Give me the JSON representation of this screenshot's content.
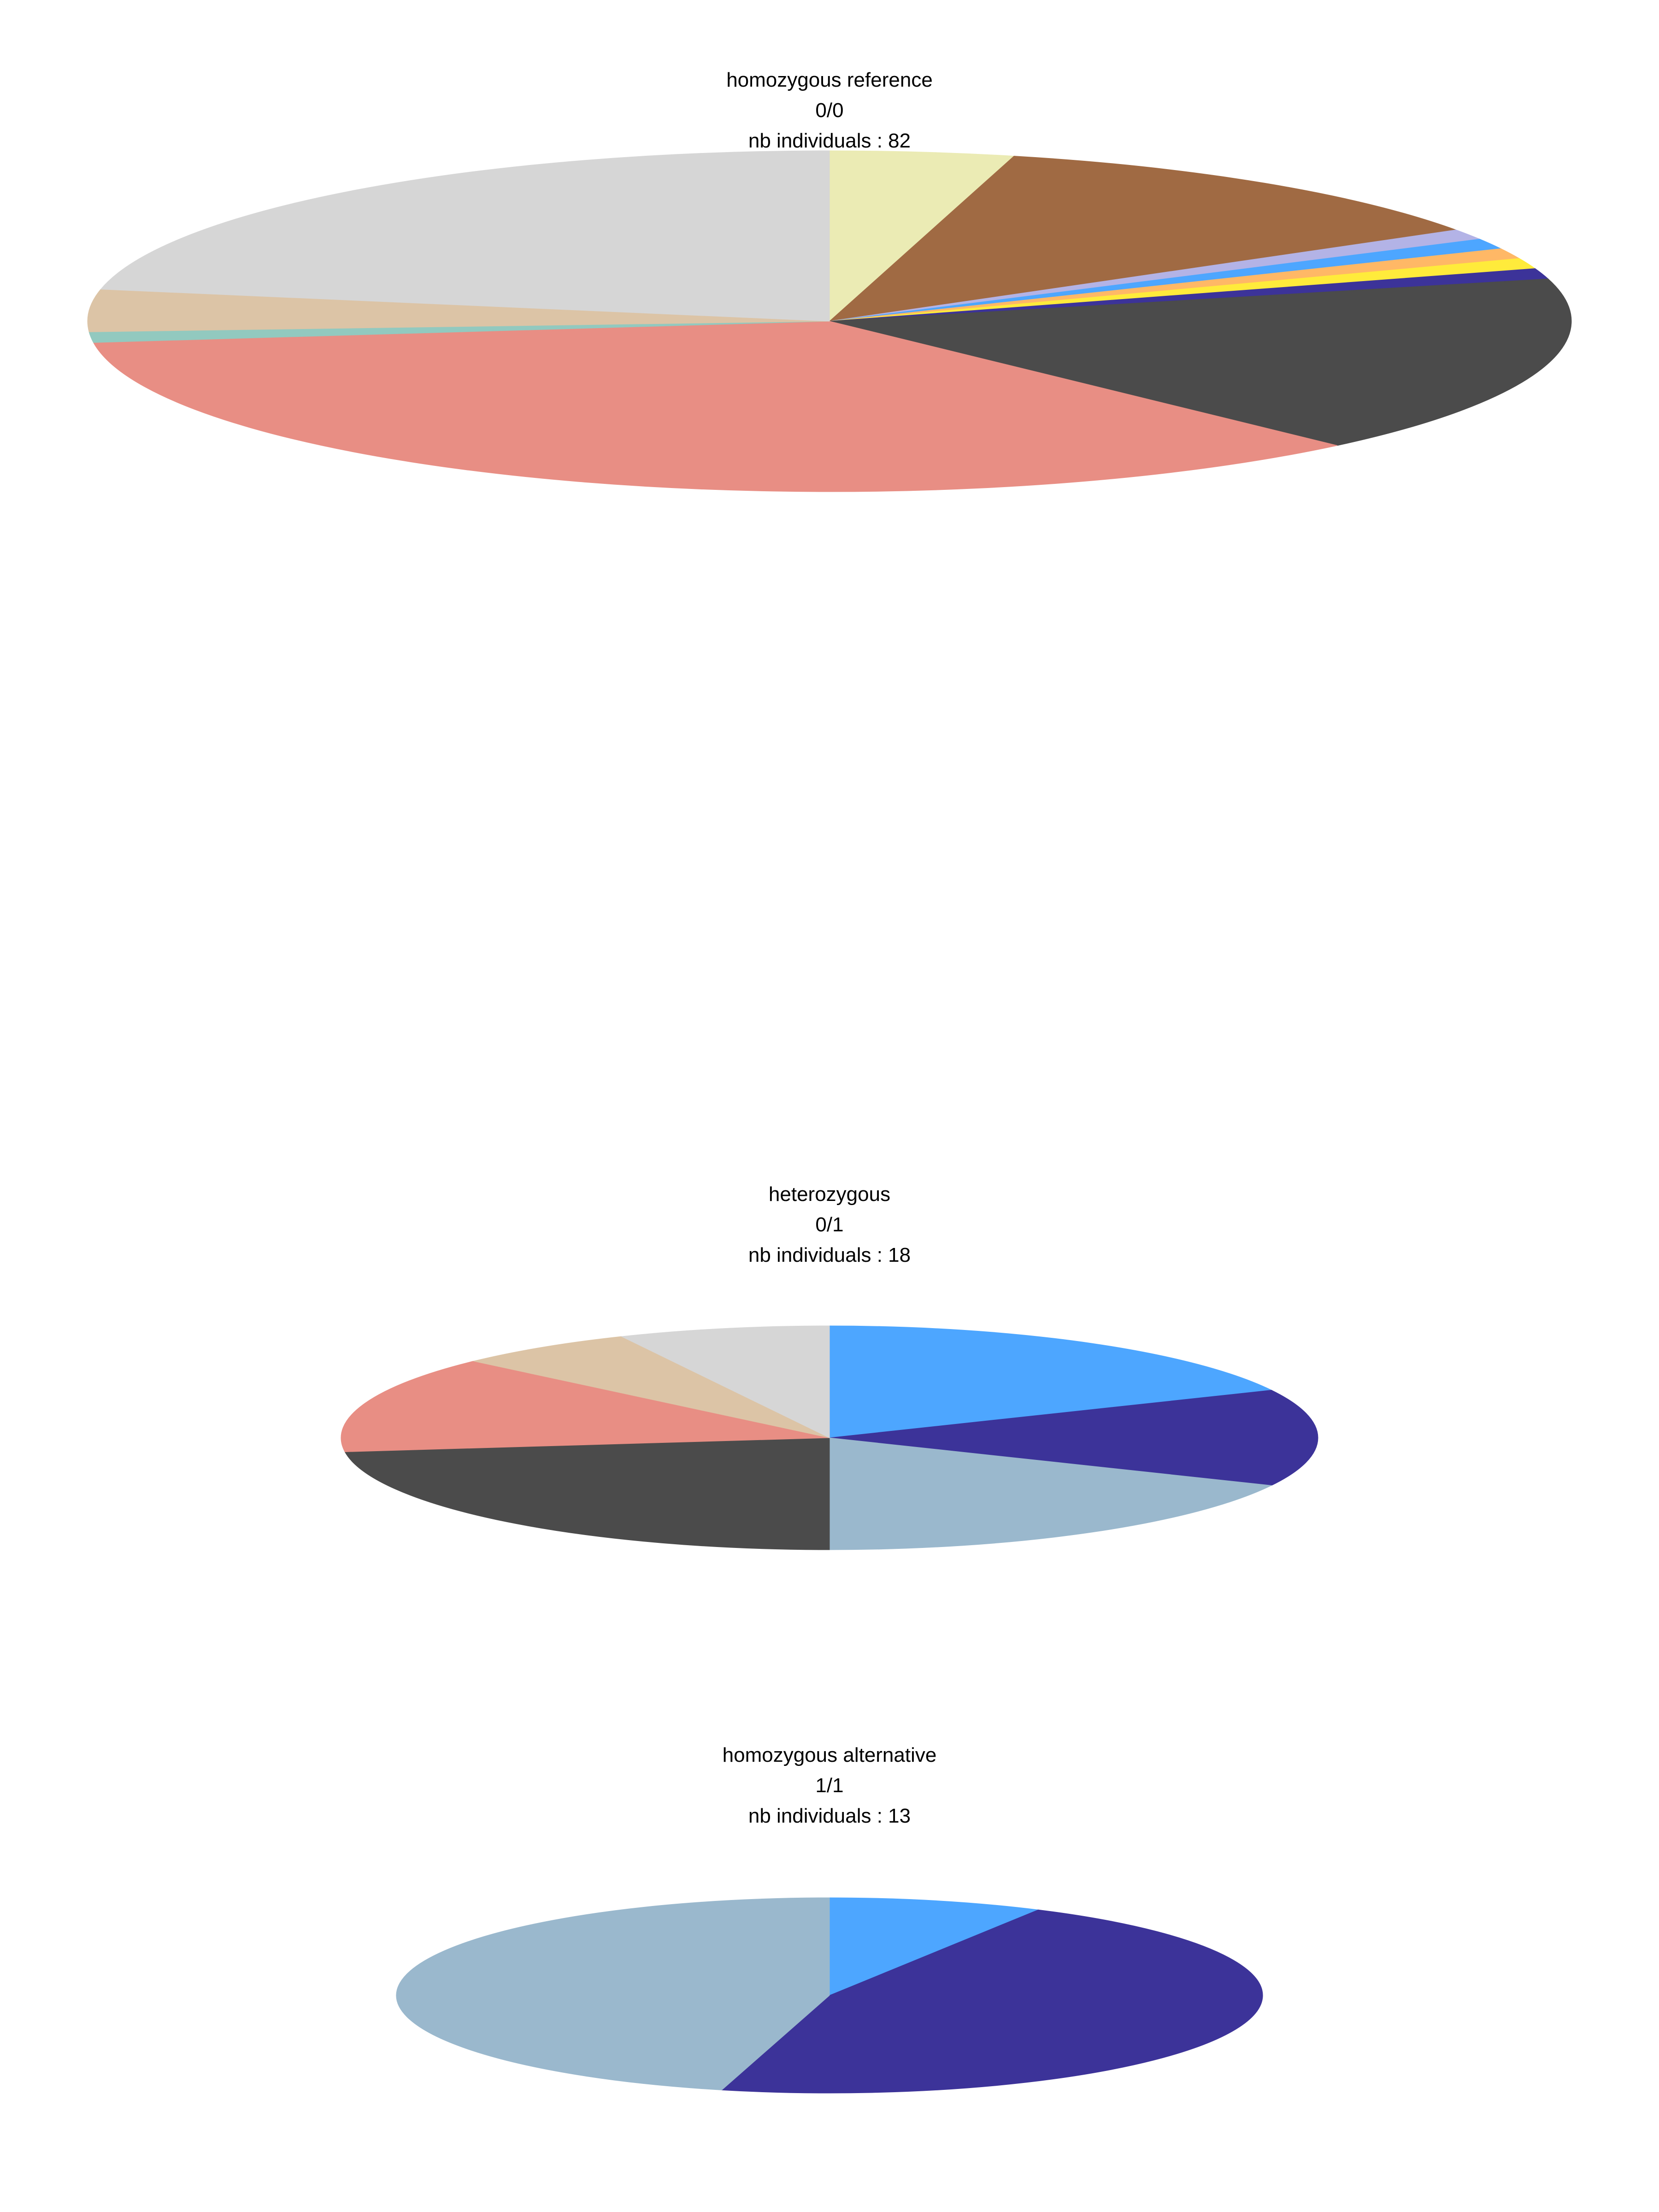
{
  "chart_data": [
    {
      "type": "pie",
      "title_lines": [
        "homozygous reference",
        "0/0",
        "nb individuals : 82"
      ],
      "start": "top",
      "direction": "clockwise",
      "slices": [
        {
          "value": 4.0,
          "color": "#ebebb4"
        },
        {
          "value": 12.0,
          "color": "#a06a43"
        },
        {
          "value": 1.0,
          "color": "#b3b3e6"
        },
        {
          "value": 1.0,
          "color": "#4da6ff"
        },
        {
          "value": 1.0,
          "color": "#ffb866"
        },
        {
          "value": 1.0,
          "color": "#ffeb3b"
        },
        {
          "value": 1.0,
          "color": "#3c3399"
        },
        {
          "value": 17.0,
          "color": "#4b4b4b"
        },
        {
          "value": 35.0,
          "color": "#e88e84"
        },
        {
          "value": 1.0,
          "color": "#92c9bf"
        },
        {
          "value": 4.0,
          "color": "#dcc4a6"
        },
        {
          "value": 22.0,
          "color": "#d6d6d6"
        }
      ]
    },
    {
      "type": "pie",
      "title_lines": [
        "heterozygous",
        "0/1",
        "nb individuals : 18"
      ],
      "start": "top",
      "direction": "clockwise",
      "slices": [
        {
          "value": 18.0,
          "color": "#4da6ff"
        },
        {
          "value": 14.0,
          "color": "#3c3399"
        },
        {
          "value": 18.0,
          "color": "#9ab8cd"
        },
        {
          "value": 23.0,
          "color": "#4b4b4b"
        },
        {
          "value": 14.0,
          "color": "#e88e84"
        },
        {
          "value": 6.0,
          "color": "#dcc4a6"
        },
        {
          "value": 7.0,
          "color": "#d6d6d6"
        }
      ]
    },
    {
      "type": "pie",
      "title_lines": [
        "homozygous alternative",
        "1/1",
        "nb individuals : 13"
      ],
      "start": "top",
      "direction": "clockwise",
      "slices": [
        {
          "value": 8.0,
          "color": "#4da6ff"
        },
        {
          "value": 46.0,
          "color": "#3c3399"
        },
        {
          "value": 46.0,
          "color": "#9ab8cd"
        }
      ]
    }
  ]
}
